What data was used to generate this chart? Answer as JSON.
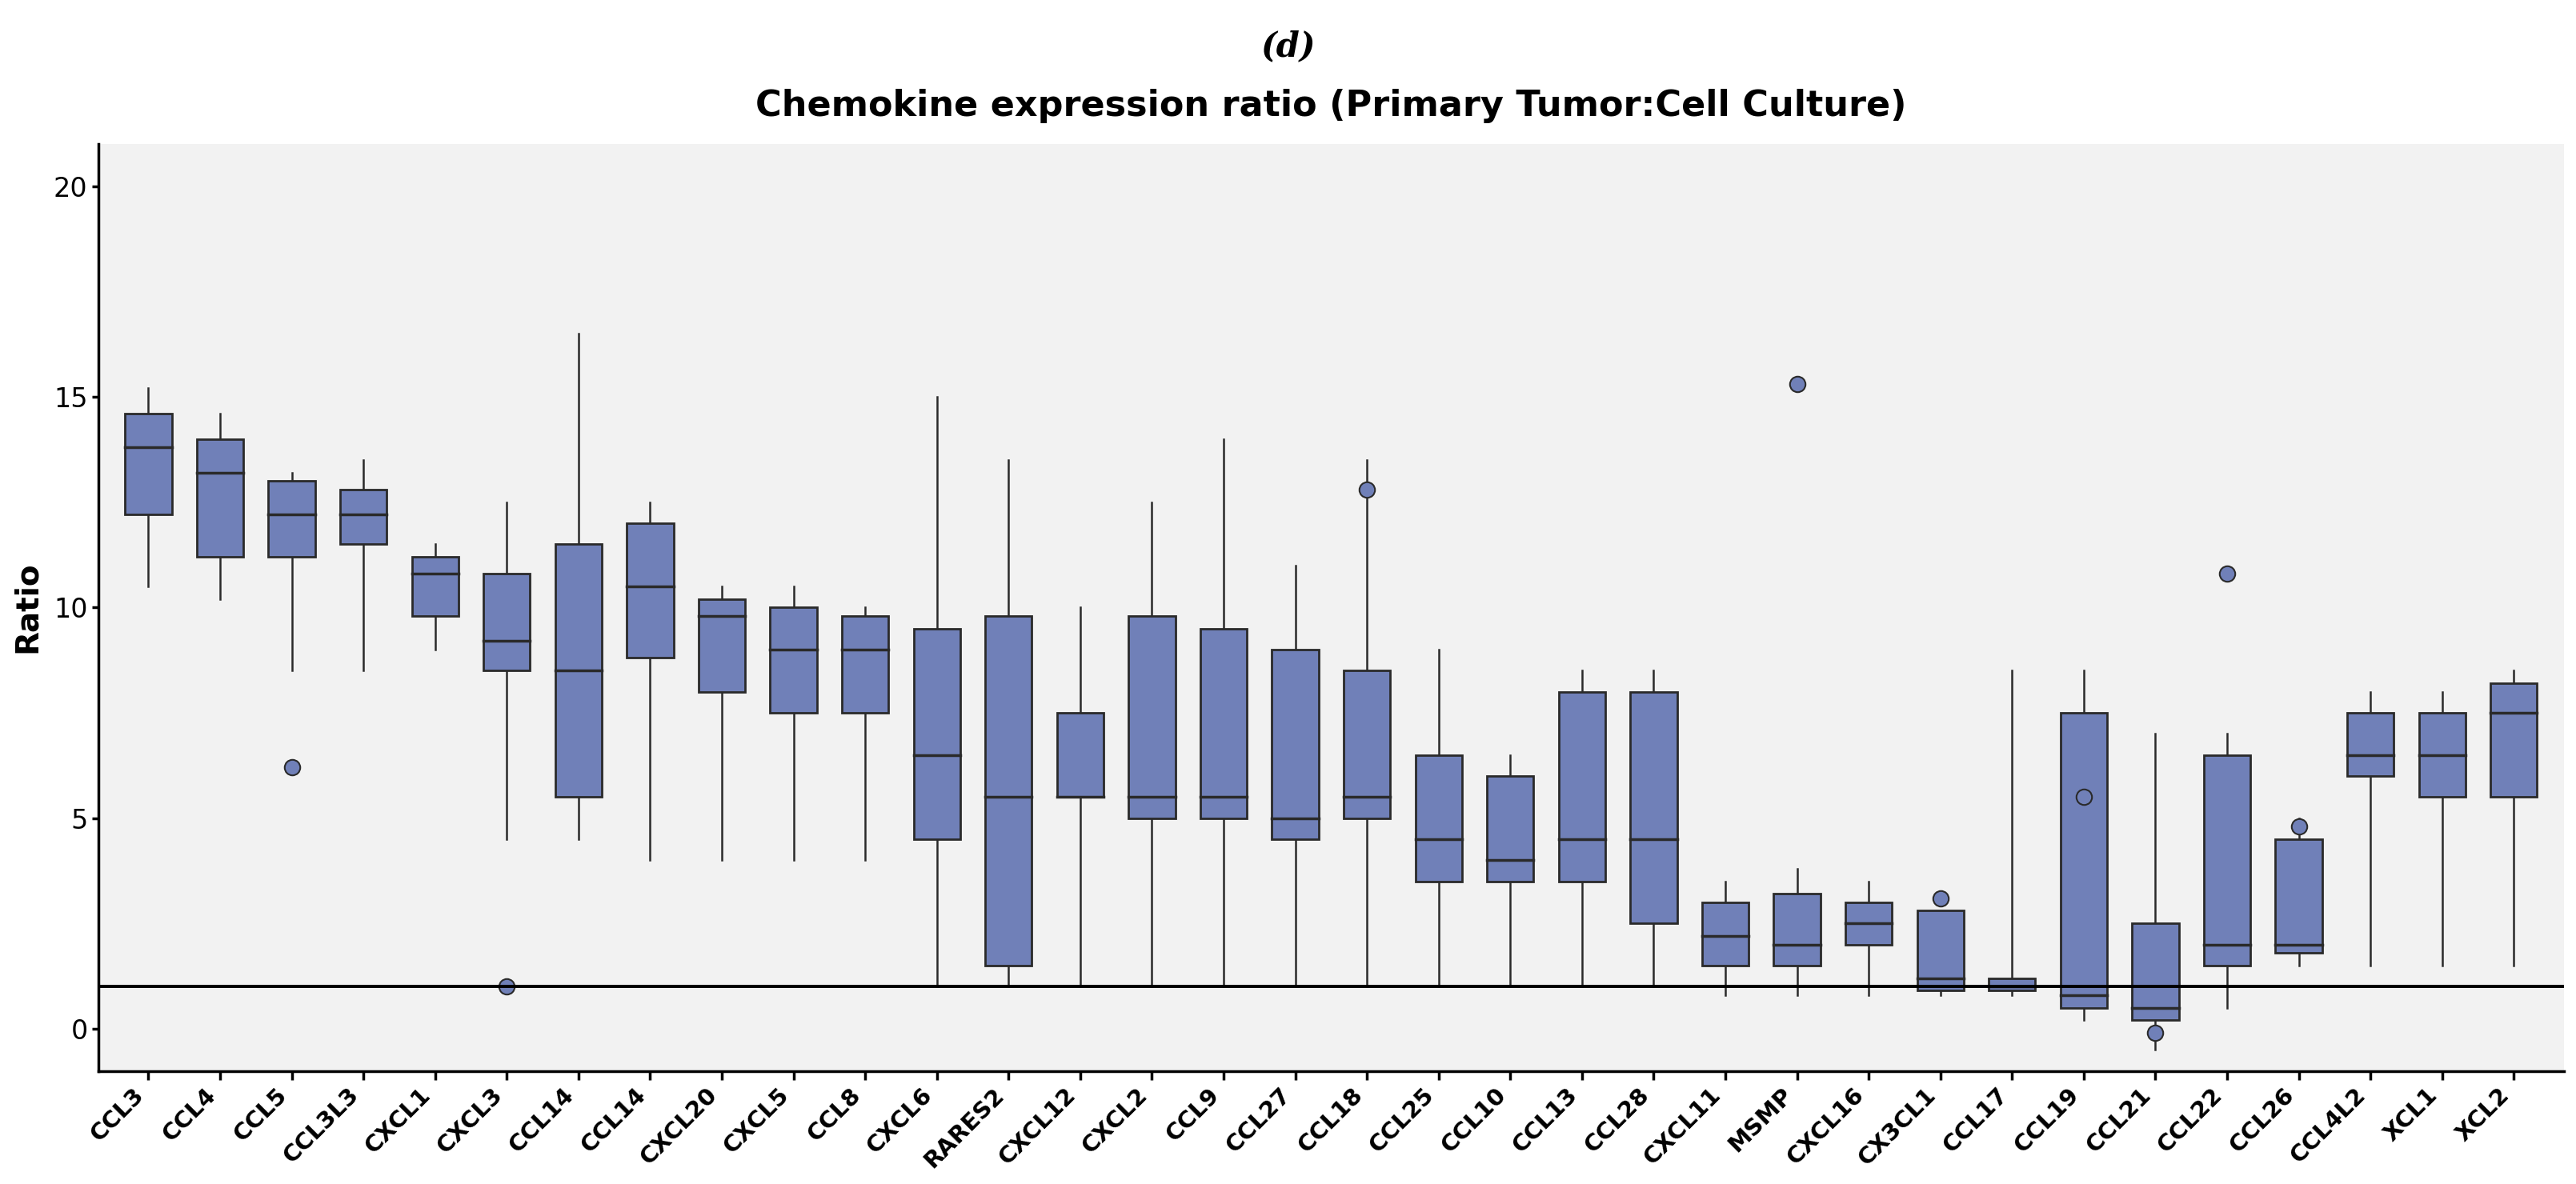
{
  "title": "Chemokine expression ratio (Primary Tumor:Cell Culture)",
  "panel_label": "(d)",
  "ylabel": "Ratio",
  "ylim": [
    -1.0,
    21.0
  ],
  "yticks": [
    0,
    5,
    10,
    15,
    20
  ],
  "hline_y": 1,
  "plot_bg_color": "#f2f2f2",
  "fig_bg_color": "#ffffff",
  "box_facecolor": "#7080b8",
  "box_edgecolor": "#2a2a2a",
  "median_color": "#2a2a2a",
  "whisker_color": "#2a2a2a",
  "flier_facecolor": "#7080b8",
  "flier_edgecolor": "#2a2a2a",
  "categories": [
    "CCL3",
    "CCL4",
    "CCL5",
    "CCL3L3",
    "CXCL1",
    "CXCL3",
    "CCL14",
    "CCL14",
    "CXCL20",
    "CXCL5",
    "CCL8",
    "CXCL6",
    "RARES2",
    "CXCL12",
    "CXCL2",
    "CCL9",
    "CCL27",
    "CCL18",
    "CCL25",
    "CCL10",
    "CCL13",
    "CCL28",
    "CXCL11",
    "MSMP",
    "CXCL16",
    "CX3CL1",
    "CCL17",
    "CCL19",
    "CCL21",
    "CCL22",
    "CCL26",
    "CCL4L2",
    "XCL1",
    "XCL2"
  ],
  "boxes": [
    {
      "whislo": 10.5,
      "q1": 12.2,
      "med": 13.8,
      "q3": 14.6,
      "whishi": 15.2,
      "fliers": []
    },
    {
      "whislo": 10.2,
      "q1": 11.2,
      "med": 13.2,
      "q3": 14.0,
      "whishi": 14.6,
      "fliers": []
    },
    {
      "whislo": 8.5,
      "q1": 11.2,
      "med": 12.2,
      "q3": 13.0,
      "whishi": 13.2,
      "fliers": [
        6.2
      ]
    },
    {
      "whislo": 8.5,
      "q1": 11.5,
      "med": 12.2,
      "q3": 12.8,
      "whishi": 13.5,
      "fliers": []
    },
    {
      "whislo": 9.0,
      "q1": 9.8,
      "med": 10.8,
      "q3": 11.2,
      "whishi": 11.5,
      "fliers": []
    },
    {
      "whislo": 4.5,
      "q1": 8.5,
      "med": 9.2,
      "q3": 10.8,
      "whishi": 12.5,
      "fliers": [
        1.0
      ]
    },
    {
      "whislo": 4.5,
      "q1": 5.5,
      "med": 8.5,
      "q3": 11.5,
      "whishi": 16.5,
      "fliers": []
    },
    {
      "whislo": 4.0,
      "q1": 8.8,
      "med": 10.5,
      "q3": 12.0,
      "whishi": 12.5,
      "fliers": []
    },
    {
      "whislo": 4.0,
      "q1": 8.0,
      "med": 9.8,
      "q3": 10.2,
      "whishi": 10.5,
      "fliers": []
    },
    {
      "whislo": 4.0,
      "q1": 7.5,
      "med": 9.0,
      "q3": 10.0,
      "whishi": 10.5,
      "fliers": []
    },
    {
      "whislo": 4.0,
      "q1": 7.5,
      "med": 9.0,
      "q3": 9.8,
      "whishi": 10.0,
      "fliers": []
    },
    {
      "whislo": 1.0,
      "q1": 4.5,
      "med": 6.5,
      "q3": 9.5,
      "whishi": 15.0,
      "fliers": []
    },
    {
      "whislo": 1.0,
      "q1": 1.5,
      "med": 5.5,
      "q3": 9.8,
      "whishi": 13.5,
      "fliers": []
    },
    {
      "whislo": 1.0,
      "q1": 5.5,
      "med": 5.5,
      "q3": 7.5,
      "whishi": 10.0,
      "fliers": []
    },
    {
      "whislo": 1.0,
      "q1": 5.0,
      "med": 5.5,
      "q3": 9.8,
      "whishi": 12.5,
      "fliers": []
    },
    {
      "whislo": 1.0,
      "q1": 5.0,
      "med": 5.5,
      "q3": 9.5,
      "whishi": 14.0,
      "fliers": []
    },
    {
      "whislo": 1.0,
      "q1": 4.5,
      "med": 5.0,
      "q3": 9.0,
      "whishi": 11.0,
      "fliers": []
    },
    {
      "whislo": 1.0,
      "q1": 5.0,
      "med": 5.5,
      "q3": 8.5,
      "whishi": 13.5,
      "fliers": [
        12.8
      ]
    },
    {
      "whislo": 1.0,
      "q1": 3.5,
      "med": 4.5,
      "q3": 6.5,
      "whishi": 9.0,
      "fliers": []
    },
    {
      "whislo": 1.0,
      "q1": 3.5,
      "med": 4.0,
      "q3": 6.0,
      "whishi": 6.5,
      "fliers": []
    },
    {
      "whislo": 1.0,
      "q1": 3.5,
      "med": 4.5,
      "q3": 8.0,
      "whishi": 8.5,
      "fliers": []
    },
    {
      "whislo": 1.0,
      "q1": 2.5,
      "med": 4.5,
      "q3": 8.0,
      "whishi": 8.5,
      "fliers": []
    },
    {
      "whislo": 0.8,
      "q1": 1.5,
      "med": 2.2,
      "q3": 3.0,
      "whishi": 3.5,
      "fliers": []
    },
    {
      "whislo": 0.8,
      "q1": 1.5,
      "med": 2.0,
      "q3": 3.2,
      "whishi": 3.8,
      "fliers": [
        15.3
      ]
    },
    {
      "whislo": 0.8,
      "q1": 2.0,
      "med": 2.5,
      "q3": 3.0,
      "whishi": 3.5,
      "fliers": []
    },
    {
      "whislo": 0.8,
      "q1": 0.9,
      "med": 1.2,
      "q3": 2.8,
      "whishi": 2.8,
      "fliers": [
        3.1
      ]
    },
    {
      "whislo": 0.8,
      "q1": 0.9,
      "med": 1.0,
      "q3": 1.2,
      "whishi": 8.5,
      "fliers": []
    },
    {
      "whislo": 0.2,
      "q1": 0.5,
      "med": 0.8,
      "q3": 7.5,
      "whishi": 8.5,
      "fliers": [
        5.5
      ]
    },
    {
      "whislo": -0.5,
      "q1": 0.2,
      "med": 0.5,
      "q3": 2.5,
      "whishi": 7.0,
      "fliers": [
        -0.1
      ]
    },
    {
      "whislo": 0.5,
      "q1": 1.5,
      "med": 2.0,
      "q3": 6.5,
      "whishi": 7.0,
      "fliers": [
        10.8
      ]
    },
    {
      "whislo": 1.5,
      "q1": 1.8,
      "med": 2.0,
      "q3": 4.5,
      "whishi": 5.0,
      "fliers": [
        4.8
      ]
    },
    {
      "whislo": 1.5,
      "q1": 6.0,
      "med": 6.5,
      "q3": 7.5,
      "whishi": 8.0,
      "fliers": []
    },
    {
      "whislo": 1.5,
      "q1": 5.5,
      "med": 6.5,
      "q3": 7.5,
      "whishi": 8.0,
      "fliers": []
    },
    {
      "whislo": 1.5,
      "q1": 5.5,
      "med": 7.5,
      "q3": 8.2,
      "whishi": 8.5,
      "fliers": []
    }
  ]
}
